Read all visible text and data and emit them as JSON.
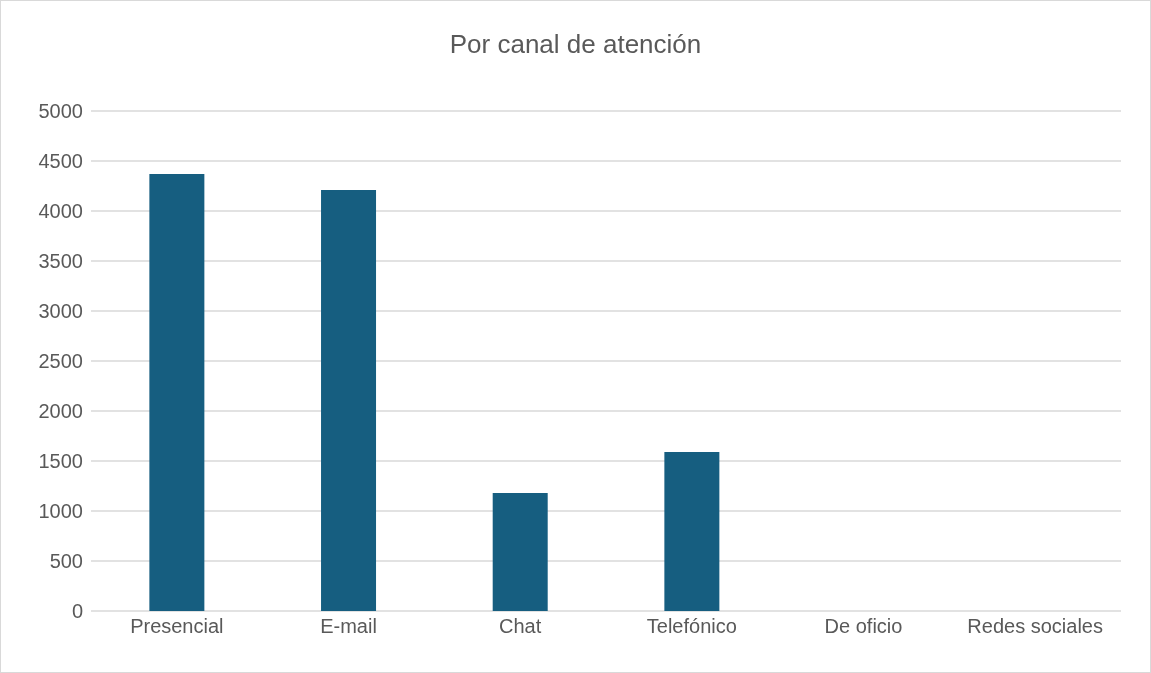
{
  "chart_data": {
    "type": "bar",
    "title": "Por canal de atención",
    "categories": [
      "Presencial",
      "E-mail",
      "Chat",
      "Telefónico",
      "De oficio",
      "Redes sociales"
    ],
    "values": [
      4370,
      4210,
      1180,
      1590,
      0,
      0
    ],
    "color": "#165e80",
    "ylim": [
      0,
      5000
    ],
    "yticks": [
      0,
      500,
      1000,
      1500,
      2000,
      2500,
      3000,
      3500,
      4000,
      4500,
      5000
    ],
    "grid": "y",
    "legend": false
  }
}
